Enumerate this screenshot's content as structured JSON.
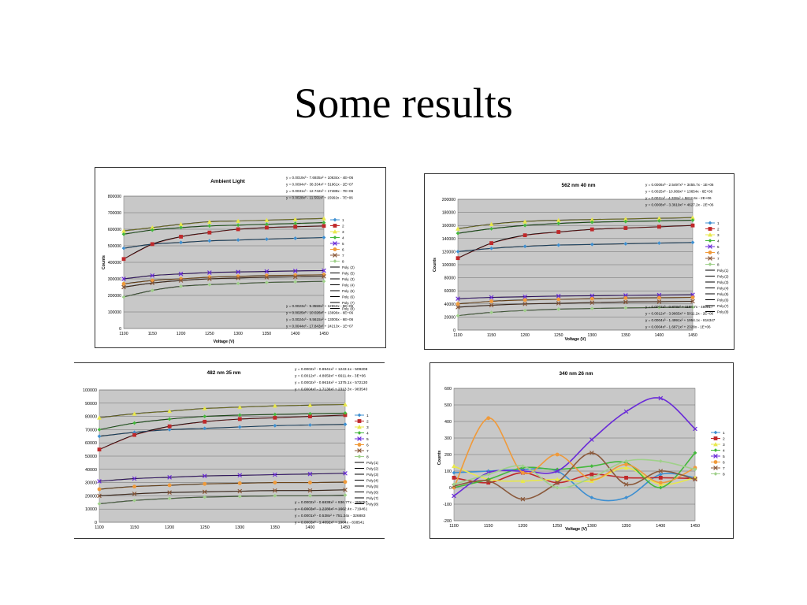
{
  "slide": {
    "title": "Some results"
  },
  "chart_data": [
    {
      "type": "line",
      "title": "Ambient Light",
      "xlabel": "Voltage (V)",
      "ylabel": "Counts",
      "xlim": [
        1100,
        1450
      ],
      "ylim": [
        0,
        800000
      ],
      "x": [
        1100,
        1150,
        1200,
        1250,
        1300,
        1350,
        1400,
        1450
      ],
      "x_ticks": [
        1100,
        1150,
        1200,
        1250,
        1300,
        1350,
        1400,
        1450
      ],
      "y_ticks": [
        0,
        100000,
        200000,
        300000,
        400000,
        500000,
        600000,
        700000,
        800000
      ],
      "series": [
        {
          "name": "1",
          "values": [
            485000,
            510000,
            520000,
            530000,
            535000,
            540000,
            545000,
            550000
          ]
        },
        {
          "name": "2",
          "values": [
            420000,
            510000,
            555000,
            580000,
            600000,
            610000,
            615000,
            620000
          ]
        },
        {
          "name": "3",
          "values": [
            590000,
            610000,
            630000,
            645000,
            650000,
            655000,
            660000,
            665000
          ]
        },
        {
          "name": "4",
          "values": [
            570000,
            595000,
            610000,
            620000,
            625000,
            630000,
            635000,
            640000
          ]
        },
        {
          "name": "5",
          "values": [
            300000,
            320000,
            330000,
            338000,
            342000,
            345000,
            348000,
            350000
          ]
        },
        {
          "name": "6",
          "values": [
            270000,
            290000,
            300000,
            310000,
            315000,
            320000,
            322000,
            325000
          ]
        },
        {
          "name": "7",
          "values": [
            250000,
            275000,
            290000,
            300000,
            305000,
            310000,
            312000,
            315000
          ]
        },
        {
          "name": "8",
          "values": [
            190000,
            230000,
            255000,
            265000,
            272000,
            278000,
            282000,
            285000
          ]
        }
      ],
      "fits": [
        "Poly. (2)",
        "Poly. (5)",
        "Poly. (3)",
        "Poly. (4)",
        "Poly. (5)",
        "Poly. (6)",
        "Poly. (7)",
        "Poly. (8)"
      ],
      "equations_top": [
        "y = 0.0019x³ - 7.6935x² + 10634x - 4E+06",
        "y = 0.0094x³ - 38.334x² + 51961x - 2E+07",
        "y = 0.0031x³ - 12.742x² + 17489x - 7E+06",
        "y = 0.0028x³ - 11.591x² + 15992x - 7E+06"
      ],
      "equations_bottom": [
        "y = 0.0023x³ - 9.3559x² + 12553x - 5E+06",
        "y = 0.0025x³ - 10.026x² + 13696x - 6E+06",
        "y = 0.0024x³ - 9.5615x² + 13005x - 6E+06",
        "y = 0.0044x³ - 17.843x² + 24213x - 1E+07"
      ]
    },
    {
      "type": "line",
      "title": "562 nm 40 nm",
      "xlabel": "Voltage (V)",
      "ylabel": "Counts",
      "xlim": [
        1100,
        1450
      ],
      "ylim": [
        0,
        200000
      ],
      "x": [
        1100,
        1150,
        1200,
        1250,
        1300,
        1350,
        1400,
        1450
      ],
      "x_ticks": [
        1100,
        1150,
        1200,
        1250,
        1300,
        1350,
        1400,
        1450
      ],
      "y_ticks": [
        0,
        20000,
        40000,
        60000,
        80000,
        100000,
        120000,
        140000,
        160000,
        180000,
        200000
      ],
      "series": [
        {
          "name": "1",
          "values": [
            120000,
            125000,
            128000,
            130000,
            131000,
            132000,
            133000,
            134000
          ]
        },
        {
          "name": "2",
          "values": [
            110000,
            133000,
            145000,
            150000,
            154000,
            156000,
            158000,
            160000
          ]
        },
        {
          "name": "3",
          "values": [
            155000,
            162000,
            166000,
            168000,
            169000,
            170000,
            171000,
            172000
          ]
        },
        {
          "name": "4",
          "values": [
            148000,
            155000,
            160000,
            163000,
            165000,
            166000,
            167000,
            168000
          ]
        },
        {
          "name": "5",
          "values": [
            48000,
            50000,
            51000,
            52000,
            52500,
            53000,
            53500,
            54000
          ]
        },
        {
          "name": "6",
          "values": [
            40000,
            44000,
            46000,
            47000,
            48000,
            49000,
            49500,
            50000
          ]
        },
        {
          "name": "7",
          "values": [
            35000,
            38000,
            40000,
            41000,
            42000,
            43000,
            43500,
            44000
          ]
        },
        {
          "name": "8",
          "values": [
            22000,
            27000,
            30000,
            32000,
            33000,
            34000,
            34500,
            35000
          ]
        }
      ],
      "fits": [
        "Poly.(1)",
        "Poly.(2)",
        "Poly.(3)",
        "Poly.(4)",
        "Poly.(5)",
        "Poly.(6)",
        "Poly.(7)",
        "Poly.(8)"
      ],
      "equations_top": [
        "y = 0.0006x³ - 2.5497x² + 3455.7x - 1E+06",
        "y = 0.0025x³ - 10.089x² + 13654x - 6E+06",
        "y = 0.0011x³ - 4.328x² + 5812.6x - 2E+06",
        "y = 0.0008x³ - 3.3619x² + 4627.2x - 2E+06"
      ],
      "equations_bottom": [
        "y = 0.0002x³ - 0.873x² + 1188.7x - 489917",
        "y = 0.0012x³ - 3.9665x² + 5011.2x - 2E+06",
        "y = 0.0004x³ - 1.4991x² + 1954.1x - 816347",
        "y = 0.0004x³ - 1.6871x² + 2328x - 1E+06"
      ]
    },
    {
      "type": "line",
      "title": "482 nm 35 nm",
      "xlabel": "",
      "ylabel": "",
      "xlim": [
        1100,
        1450
      ],
      "ylim": [
        0,
        100000
      ],
      "x": [
        1100,
        1150,
        1200,
        1250,
        1300,
        1350,
        1400,
        1450
      ],
      "x_ticks": [
        1100,
        1150,
        1200,
        1250,
        1300,
        1350,
        1400,
        1450
      ],
      "y_ticks": [
        0,
        10000,
        20000,
        30000,
        40000,
        50000,
        60000,
        70000,
        80000,
        90000,
        100000
      ],
      "series": [
        {
          "name": "1",
          "values": [
            65000,
            68000,
            70000,
            71000,
            72000,
            73000,
            73500,
            74000
          ]
        },
        {
          "name": "2",
          "values": [
            55000,
            66000,
            72500,
            76000,
            78000,
            79000,
            80000,
            81000
          ]
        },
        {
          "name": "3",
          "values": [
            79000,
            82000,
            84000,
            86000,
            87000,
            88000,
            88500,
            89000
          ]
        },
        {
          "name": "4",
          "values": [
            70000,
            75000,
            78000,
            80000,
            81000,
            81500,
            82000,
            82500
          ]
        },
        {
          "name": "5",
          "values": [
            31000,
            33000,
            34000,
            35000,
            35500,
            36000,
            36500,
            37000
          ]
        },
        {
          "name": "6",
          "values": [
            25000,
            27000,
            28000,
            29000,
            29500,
            30000,
            30000,
            30500
          ]
        },
        {
          "name": "7",
          "values": [
            20000,
            21500,
            22500,
            23000,
            23500,
            24000,
            24000,
            24500
          ]
        },
        {
          "name": "8",
          "values": [
            14000,
            16500,
            18000,
            19000,
            19500,
            20000,
            20000,
            20500
          ]
        }
      ],
      "fits": [
        "Poly.(1)",
        "Poly.(2)",
        "Poly.(3)",
        "Poly.(4)",
        "Poly.(5)",
        "Poly.(6)",
        "Poly.(7)",
        "Poly.(8)"
      ],
      "equations_top": [
        "y = 0.0002x³ - 0.8941x² + 1243.1x - 509208",
        "y = 0.0012x³ - 4.8659x² + 6611.4x - 3E+06",
        "y = 0.0002x³ - 0.9616x² + 1375.1x - 572130",
        "y = 0.0004x³ - 1.7136x² + 2313.3x - 983540"
      ],
      "equations_bottom": [
        "y = 0.0002x³ - 0.6838x² + 936.77x - 395057",
        "y = 0.0003x³ - 1.2286x² + 1662.4x - 719461",
        "y = 0.0001x³ - 0.538x² + 751.24x - 326883",
        "y = 0.0003x³ - 1.4092x² + 1904x - 838541"
      ]
    },
    {
      "type": "line",
      "title": "340 nm 26 nm",
      "xlabel": "Voltage (V)",
      "ylabel": "Counts",
      "xlim": [
        1100,
        1450
      ],
      "ylim": [
        -200,
        600
      ],
      "x": [
        1100,
        1150,
        1200,
        1250,
        1300,
        1350,
        1400,
        1450
      ],
      "x_ticks": [
        1100,
        1150,
        1200,
        1250,
        1300,
        1350,
        1400,
        1450
      ],
      "y_ticks": [
        -200,
        -100,
        0,
        100,
        200,
        300,
        400,
        500,
        600
      ],
      "series": [
        {
          "name": "1",
          "values": [
            90,
            100,
            110,
            100,
            -60,
            -60,
            80,
            60
          ]
        },
        {
          "name": "2",
          "values": [
            60,
            30,
            90,
            30,
            80,
            60,
            60,
            55
          ]
        },
        {
          "name": "3",
          "values": [
            130,
            50,
            40,
            50,
            40,
            120,
            20,
            60
          ]
        },
        {
          "name": "4",
          "values": [
            0,
            50,
            120,
            110,
            130,
            150,
            0,
            210
          ]
        },
        {
          "name": "5",
          "values": [
            -50,
            90,
            100,
            100,
            290,
            460,
            540,
            355
          ]
        },
        {
          "name": "6",
          "values": [
            0,
            420,
            90,
            200,
            50,
            140,
            30,
            120
          ]
        },
        {
          "name": "7",
          "values": [
            10,
            40,
            -70,
            30,
            210,
            20,
            100,
            50
          ]
        },
        {
          "name": "8",
          "values": [
            20,
            80,
            130,
            0,
            60,
            160,
            160,
            110
          ]
        }
      ]
    }
  ],
  "colors": {
    "plot_bg": "#c8c8c8",
    "grid": "#555555",
    "fit_line": "#000000",
    "series": [
      "#3d8fd1",
      "#c0282a",
      "#e8e84c",
      "#44b83c",
      "#6a2bd8",
      "#f09a3a",
      "#8b5a3c",
      "#9fd08a"
    ]
  }
}
